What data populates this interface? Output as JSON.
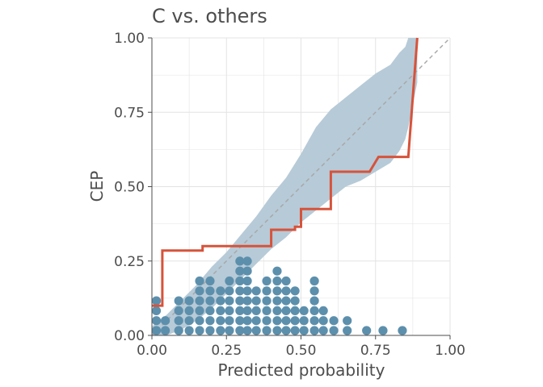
{
  "chart_data": {
    "type": "line",
    "title": "C vs. others",
    "xlabel": "Predicted probability",
    "ylabel": "CEP",
    "xlim": [
      0,
      1
    ],
    "ylim": [
      0,
      1
    ],
    "x_ticks": [
      "0.00",
      "0.25",
      "0.50",
      "0.75",
      "1.00"
    ],
    "y_ticks": [
      "0.00",
      "0.25",
      "0.50",
      "0.75",
      "1.00"
    ],
    "grid": true,
    "legend": "none",
    "colors": {
      "band": "#b7cad7",
      "cep_line": "#d6533b",
      "dots": "#5c8fac",
      "diagonal": "#a6a6a6",
      "grid": "#e3e3e3",
      "axis": "#4d4d4d"
    },
    "series": [
      {
        "role": "cep",
        "x": [
          0.0,
          0.035,
          0.035,
          0.17,
          0.17,
          0.4,
          0.4,
          0.48,
          0.48,
          0.5,
          0.5,
          0.6,
          0.6,
          0.73,
          0.76,
          0.76,
          0.86,
          0.89
        ],
        "y": [
          0.1,
          0.1,
          0.285,
          0.285,
          0.3,
          0.3,
          0.355,
          0.355,
          0.365,
          0.365,
          0.425,
          0.425,
          0.55,
          0.55,
          0.6,
          0.6,
          0.6,
          1.0
        ]
      },
      {
        "role": "band",
        "x": [
          0.0,
          0.05,
          0.1,
          0.15,
          0.2,
          0.25,
          0.3,
          0.35,
          0.4,
          0.45,
          0.5,
          0.55,
          0.6,
          0.65,
          0.7,
          0.75,
          0.8,
          0.83,
          0.85,
          0.86,
          0.89
        ],
        "lower": [
          0.0,
          0.0,
          0.02,
          0.05,
          0.09,
          0.14,
          0.19,
          0.24,
          0.29,
          0.33,
          0.38,
          0.42,
          0.46,
          0.5,
          0.52,
          0.55,
          0.58,
          0.62,
          0.66,
          0.7,
          0.85
        ],
        "upper": [
          0.03,
          0.07,
          0.12,
          0.17,
          0.23,
          0.28,
          0.34,
          0.4,
          0.47,
          0.53,
          0.61,
          0.7,
          0.76,
          0.8,
          0.84,
          0.88,
          0.91,
          0.95,
          0.97,
          1.0,
          1.0
        ]
      }
    ],
    "dots": [
      {
        "x": 0.015,
        "n": 4
      },
      {
        "x": 0.045,
        "n": 2
      },
      {
        "x": 0.09,
        "n": 4
      },
      {
        "x": 0.125,
        "n": 4
      },
      {
        "x": 0.16,
        "n": 6
      },
      {
        "x": 0.195,
        "n": 6
      },
      {
        "x": 0.23,
        "n": 5
      },
      {
        "x": 0.26,
        "n": 6
      },
      {
        "x": 0.295,
        "n": 8
      },
      {
        "x": 0.32,
        "n": 8
      },
      {
        "x": 0.35,
        "n": 5
      },
      {
        "x": 0.385,
        "n": 6
      },
      {
        "x": 0.42,
        "n": 7
      },
      {
        "x": 0.45,
        "n": 6
      },
      {
        "x": 0.48,
        "n": 5
      },
      {
        "x": 0.51,
        "n": 3
      },
      {
        "x": 0.545,
        "n": 6
      },
      {
        "x": 0.575,
        "n": 3
      },
      {
        "x": 0.61,
        "n": 2
      },
      {
        "x": 0.655,
        "n": 2
      },
      {
        "x": 0.72,
        "n": 1
      },
      {
        "x": 0.775,
        "n": 1
      },
      {
        "x": 0.84,
        "n": 1
      }
    ]
  }
}
